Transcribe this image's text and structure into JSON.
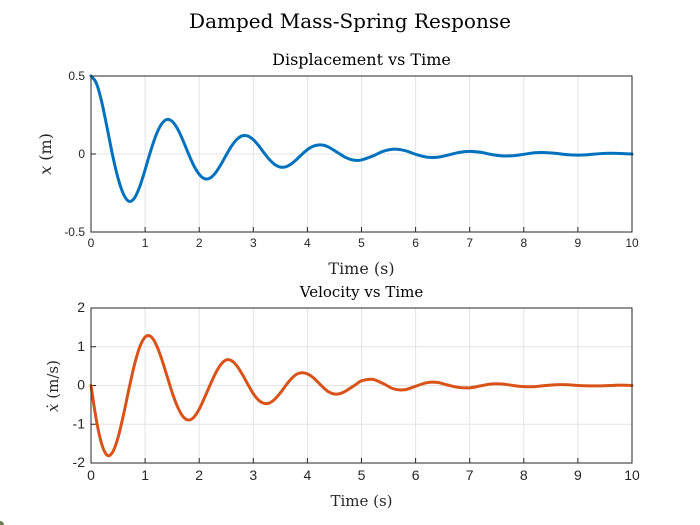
{
  "figure": {
    "title": "Damped Mass-Spring Response"
  },
  "chart_data": [
    {
      "type": "line",
      "title": "Displacement vs Time",
      "xlabel": "Time (s)",
      "ylabel": "x (m)",
      "ylabel_var": "x",
      "ylabel_unit": " (m)",
      "xlim": [
        0,
        10
      ],
      "ylim": [
        -0.5,
        0.5
      ],
      "xticks": [
        0,
        1,
        2,
        3,
        4,
        5,
        6,
        7,
        8,
        9,
        10
      ],
      "yticks": [
        -0.5,
        0,
        0.5
      ],
      "ytick_labels": [
        "-0.5",
        "0",
        "0.5"
      ],
      "grid": true,
      "color": "#0072BD",
      "x": [
        0,
        0.1,
        0.2,
        0.3,
        0.4,
        0.5,
        0.6,
        0.7,
        0.8,
        0.9,
        1.0,
        1.1,
        1.2,
        1.3,
        1.4,
        1.5,
        1.6,
        1.7,
        1.8,
        1.9,
        2.0,
        2.1,
        2.2,
        2.3,
        2.4,
        2.5,
        2.6,
        2.7,
        2.8,
        2.9,
        3.0,
        3.1,
        3.2,
        3.3,
        3.4,
        3.5,
        3.6,
        3.7,
        3.8,
        3.9,
        4.0,
        4.1,
        4.2,
        4.3,
        4.4,
        4.5,
        4.6,
        4.7,
        4.8,
        4.9,
        5.0,
        5.2,
        5.4,
        5.6,
        5.8,
        6.0,
        6.2,
        6.4,
        6.6,
        6.8,
        7.0,
        7.2,
        7.4,
        7.6,
        7.8,
        8.0,
        8.2,
        8.4,
        8.6,
        8.8,
        9.0,
        9.2,
        9.4,
        9.6,
        9.8,
        10.0
      ],
      "y": [
        0.5,
        0.453,
        0.331,
        0.164,
        -0.009,
        -0.155,
        -0.257,
        -0.303,
        -0.284,
        -0.21,
        -0.101,
        0.016,
        0.119,
        0.19,
        0.221,
        0.209,
        0.161,
        0.087,
        0.003,
        -0.074,
        -0.13,
        -0.158,
        -0.154,
        -0.121,
        -0.068,
        -0.006,
        0.052,
        0.095,
        0.117,
        0.115,
        0.092,
        0.053,
        0.007,
        -0.036,
        -0.068,
        -0.084,
        -0.082,
        -0.064,
        -0.035,
        -0.002,
        0.028,
        0.049,
        0.058,
        0.056,
        0.043,
        0.022,
        0.0,
        -0.021,
        -0.035,
        -0.041,
        -0.038,
        -0.014,
        0.017,
        0.031,
        0.022,
        -0.002,
        -0.02,
        -0.021,
        -0.007,
        0.01,
        0.017,
        0.011,
        -0.003,
        -0.012,
        -0.011,
        -0.002,
        0.008,
        0.009,
        0.004,
        -0.004,
        -0.007,
        -0.004,
        0.002,
        0.005,
        0.003,
        0.0
      ]
    },
    {
      "type": "line",
      "title": "Velocity vs Time",
      "xlabel": "Time (s)",
      "ylabel": "ẋ (m/s)",
      "ylabel_var": "ẋ",
      "ylabel_unit": " (m/s)",
      "xlim": [
        0,
        10
      ],
      "ylim": [
        -2,
        2
      ],
      "xticks": [
        0,
        1,
        2,
        3,
        4,
        5,
        6,
        7,
        8,
        9,
        10
      ],
      "yticks": [
        -2,
        -1,
        0,
        1,
        2
      ],
      "ytick_labels": [
        "-2",
        "-1",
        "0",
        "1",
        "2"
      ],
      "grid": true,
      "color": "#D95319",
      "x": [
        0,
        0.1,
        0.2,
        0.3,
        0.4,
        0.5,
        0.6,
        0.7,
        0.8,
        0.9,
        1.0,
        1.1,
        1.2,
        1.3,
        1.4,
        1.5,
        1.6,
        1.7,
        1.8,
        1.9,
        2.0,
        2.1,
        2.2,
        2.3,
        2.4,
        2.5,
        2.6,
        2.7,
        2.8,
        2.9,
        3.0,
        3.1,
        3.2,
        3.3,
        3.4,
        3.5,
        3.6,
        3.7,
        3.8,
        3.9,
        4.0,
        4.1,
        4.2,
        4.3,
        4.4,
        4.5,
        4.6,
        4.7,
        4.8,
        4.9,
        5.0,
        5.2,
        5.4,
        5.6,
        5.8,
        6.0,
        6.2,
        6.4,
        6.6,
        6.8,
        7.0,
        7.2,
        7.4,
        7.6,
        7.8,
        8.0,
        8.2,
        8.4,
        8.6,
        8.8,
        9.0,
        9.2,
        9.4,
        9.6,
        9.8,
        10.0
      ],
      "y": [
        0,
        -0.9,
        -1.52,
        -1.8,
        -1.72,
        -1.34,
        -0.76,
        -0.1,
        0.52,
        0.99,
        1.25,
        1.27,
        1.07,
        0.71,
        0.27,
        -0.18,
        -0.55,
        -0.8,
        -0.89,
        -0.82,
        -0.61,
        -0.31,
        0.01,
        0.31,
        0.54,
        0.66,
        0.64,
        0.5,
        0.28,
        0.03,
        -0.21,
        -0.38,
        -0.46,
        -0.45,
        -0.35,
        -0.19,
        0.0,
        0.17,
        0.29,
        0.33,
        0.3,
        0.21,
        0.08,
        -0.06,
        -0.17,
        -0.22,
        -0.21,
        -0.15,
        -0.06,
        0.03,
        0.12,
        0.16,
        0.05,
        -0.09,
        -0.11,
        -0.02,
        0.07,
        0.08,
        0.01,
        -0.05,
        -0.06,
        -0.01,
        0.04,
        0.04,
        0.0,
        -0.03,
        -0.03,
        0.0,
        0.02,
        0.02,
        0.0,
        -0.01,
        -0.01,
        0.0,
        0.01,
        0.0
      ]
    }
  ]
}
